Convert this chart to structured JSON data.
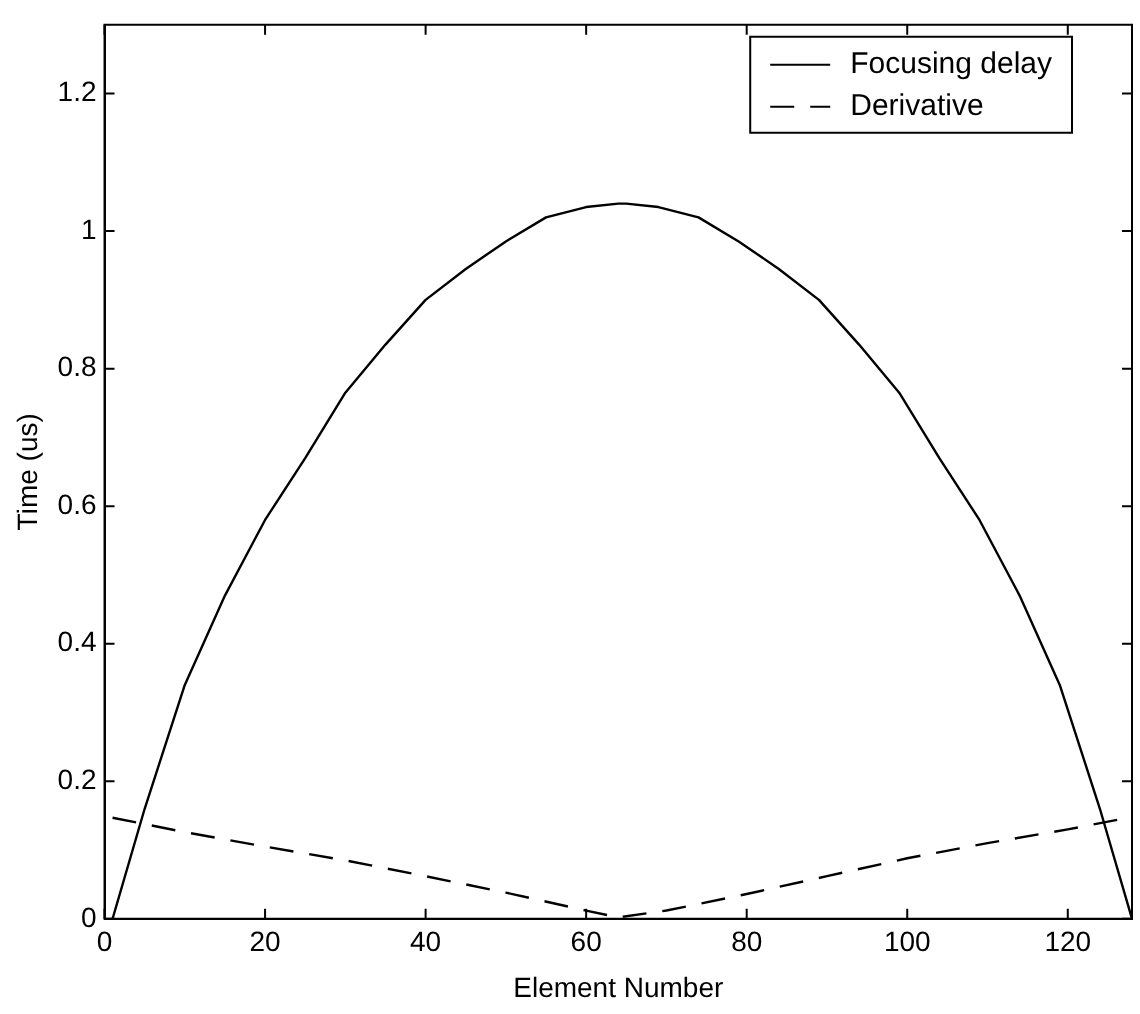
{
  "chart_data": {
    "type": "line",
    "xlabel": "Element Number",
    "ylabel": "Time (us)",
    "xlim": [
      0,
      128
    ],
    "xticks": [
      0,
      20,
      40,
      60,
      80,
      100,
      120
    ],
    "ylim": [
      0,
      1.3
    ],
    "yticks": [
      0,
      0.2,
      0.4,
      0.6,
      0.8,
      1,
      1.2
    ],
    "grid": false,
    "legend": "top right",
    "marker": "none",
    "series": [
      {
        "name": "Focusing delay",
        "color": "#000000",
        "line_style": "solid",
        "x": [
          1,
          5,
          10,
          15,
          20,
          25,
          30,
          35,
          40,
          45,
          50,
          55,
          60,
          64,
          65,
          69,
          74,
          79,
          84,
          89,
          94,
          99,
          104,
          109,
          114,
          119,
          124,
          128
        ],
        "values": [
          0,
          0.16,
          0.34,
          0.47,
          0.58,
          0.67,
          0.765,
          0.835,
          0.9,
          0.945,
          0.985,
          1.02,
          1.035,
          1.04,
          1.04,
          1.035,
          1.02,
          0.985,
          0.945,
          0.9,
          0.835,
          0.765,
          0.67,
          0.58,
          0.47,
          0.34,
          0.16,
          0
        ]
      },
      {
        "name": "Derivative",
        "color": "#000000",
        "line_style": "dashed",
        "x": [
          1,
          10,
          20,
          30,
          40,
          50,
          60,
          64,
          70,
          80,
          90,
          100,
          110,
          120,
          128
        ],
        "values": [
          0.147,
          0.126,
          0.105,
          0.085,
          0.062,
          0.038,
          0.012,
          0.002,
          0.012,
          0.036,
          0.062,
          0.088,
          0.11,
          0.13,
          0.148
        ]
      }
    ]
  }
}
